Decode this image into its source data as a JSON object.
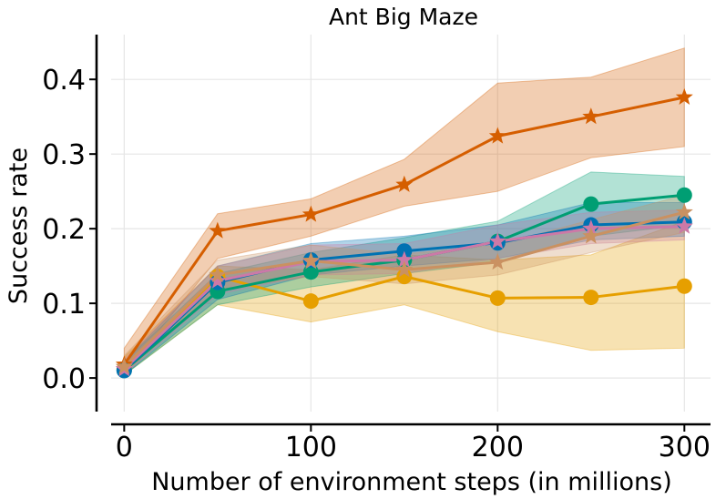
{
  "chart_data": {
    "type": "line",
    "title": "Ant Big Maze",
    "xlabel": "Number of environment steps (in millions)",
    "ylabel": "Success rate",
    "xlim": [
      -7,
      314
    ],
    "ylim": [
      -0.045,
      0.46
    ],
    "xticks": [
      0,
      100,
      200,
      300
    ],
    "yticks": [
      0.0,
      0.1,
      0.2,
      0.3,
      0.4
    ],
    "xtick_labels": [
      "0",
      "100",
      "200",
      "300"
    ],
    "ytick_labels": [
      "0.0",
      "0.1",
      "0.2",
      "0.3",
      "0.4"
    ],
    "grid": true,
    "x": [
      0,
      50,
      100,
      150,
      200,
      250,
      300
    ],
    "series": [
      {
        "name": "series-orange",
        "color": "#e69f00",
        "marker": "circle",
        "values": [
          0.012,
          0.136,
          0.103,
          0.136,
          0.107,
          0.108,
          0.123
        ],
        "lower": [
          0.004,
          0.098,
          0.075,
          0.098,
          0.062,
          0.037,
          0.04
        ],
        "upper": [
          0.028,
          0.15,
          0.145,
          0.165,
          0.158,
          0.165,
          0.21
        ]
      },
      {
        "name": "series-vermillion",
        "color": "#d55e00",
        "marker": "star",
        "values": [
          0.018,
          0.197,
          0.219,
          0.259,
          0.324,
          0.35,
          0.376
        ],
        "lower": [
          0.006,
          0.16,
          0.19,
          0.23,
          0.25,
          0.295,
          0.31
        ],
        "upper": [
          0.04,
          0.22,
          0.24,
          0.293,
          0.395,
          0.403,
          0.442
        ]
      },
      {
        "name": "series-green",
        "color": "#009e73",
        "marker": "circle",
        "values": [
          0.01,
          0.116,
          0.142,
          0.158,
          0.183,
          0.233,
          0.245
        ],
        "lower": [
          0.004,
          0.098,
          0.122,
          0.14,
          0.155,
          0.19,
          0.205
        ],
        "upper": [
          0.022,
          0.14,
          0.168,
          0.188,
          0.21,
          0.276,
          0.27
        ]
      },
      {
        "name": "series-blue",
        "color": "#0072b2",
        "marker": "circle",
        "values": [
          0.01,
          0.128,
          0.158,
          0.17,
          0.181,
          0.205,
          0.209
        ],
        "lower": [
          0.004,
          0.105,
          0.138,
          0.15,
          0.16,
          0.185,
          0.19
        ],
        "upper": [
          0.022,
          0.15,
          0.18,
          0.19,
          0.205,
          0.235,
          0.235
        ]
      },
      {
        "name": "series-pink",
        "color": "#cc79a7",
        "marker": "star",
        "values": [
          0.012,
          0.13,
          0.156,
          0.158,
          0.183,
          0.2,
          0.203
        ],
        "lower": [
          0.005,
          0.112,
          0.138,
          0.14,
          0.16,
          0.18,
          0.185
        ],
        "upper": [
          0.025,
          0.15,
          0.178,
          0.18,
          0.205,
          0.222,
          0.225
        ]
      },
      {
        "name": "series-tan",
        "color": "#ca9161",
        "marker": "star",
        "values": [
          0.015,
          0.138,
          0.157,
          0.145,
          0.155,
          0.19,
          0.222
        ],
        "lower": [
          0.006,
          0.118,
          0.136,
          0.126,
          0.138,
          0.168,
          0.195
        ],
        "upper": [
          0.03,
          0.158,
          0.178,
          0.166,
          0.178,
          0.212,
          0.245
        ]
      }
    ]
  }
}
